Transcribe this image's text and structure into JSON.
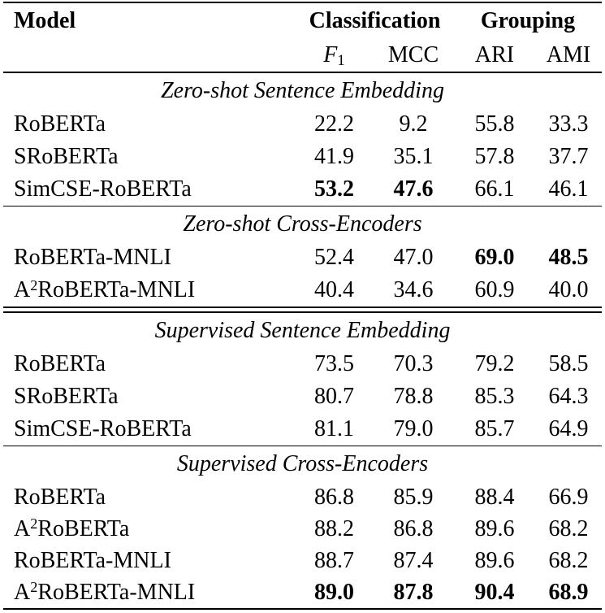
{
  "colors": {
    "background": "#ffffff",
    "text": "#000000",
    "rule": "#000000"
  },
  "table": {
    "header": {
      "model_label": "Model",
      "group_classification": "Classification",
      "group_grouping": "Grouping",
      "metric_f": "F",
      "metric_f_sub": "1",
      "metric_mcc": "MCC",
      "metric_ari": "ARI",
      "metric_ami": "AMI"
    },
    "sections": [
      {
        "title": "Zero-shot Sentence Embedding",
        "rows": [
          {
            "model_pre": "RoBERTa",
            "model_sup": "",
            "model_post": "",
            "f1": "22.2",
            "mcc": "9.2",
            "ari": "55.8",
            "ami": "33.3",
            "bold_cols": []
          },
          {
            "model_pre": "SRoBERTa",
            "model_sup": "",
            "model_post": "",
            "f1": "41.9",
            "mcc": "35.1",
            "ari": "57.8",
            "ami": "37.7",
            "bold_cols": []
          },
          {
            "model_pre": "SimCSE-RoBERTa",
            "model_sup": "",
            "model_post": "",
            "f1": "53.2",
            "mcc": "47.6",
            "ari": "66.1",
            "ami": "46.1",
            "bold_cols": [
              "f1",
              "mcc"
            ]
          }
        ]
      },
      {
        "title": "Zero-shot Cross-Encoders",
        "rows": [
          {
            "model_pre": "RoBERTa-MNLI",
            "model_sup": "",
            "model_post": "",
            "f1": "52.4",
            "mcc": "47.0",
            "ari": "69.0",
            "ami": "48.5",
            "bold_cols": [
              "ari",
              "ami"
            ]
          },
          {
            "model_pre": "A",
            "model_sup": "2",
            "model_post": "RoBERTa-MNLI",
            "f1": "40.4",
            "mcc": "34.6",
            "ari": "60.9",
            "ami": "40.0",
            "bold_cols": []
          }
        ]
      },
      {
        "title": "Supervised Sentence Embedding",
        "rows": [
          {
            "model_pre": "RoBERTa",
            "model_sup": "",
            "model_post": "",
            "f1": "73.5",
            "mcc": "70.3",
            "ari": "79.2",
            "ami": "58.5",
            "bold_cols": []
          },
          {
            "model_pre": "SRoBERTa",
            "model_sup": "",
            "model_post": "",
            "f1": "80.7",
            "mcc": "78.8",
            "ari": "85.3",
            "ami": "64.3",
            "bold_cols": []
          },
          {
            "model_pre": "SimCSE-RoBERTa",
            "model_sup": "",
            "model_post": "",
            "f1": "81.1",
            "mcc": "79.0",
            "ari": "85.7",
            "ami": "64.9",
            "bold_cols": []
          }
        ]
      },
      {
        "title": "Supervised Cross-Encoders",
        "rows": [
          {
            "model_pre": "RoBERTa",
            "model_sup": "",
            "model_post": "",
            "f1": "86.8",
            "mcc": "85.9",
            "ari": "88.4",
            "ami": "66.9",
            "bold_cols": []
          },
          {
            "model_pre": "A",
            "model_sup": "2",
            "model_post": "RoBERTa",
            "f1": "88.2",
            "mcc": "86.8",
            "ari": "89.6",
            "ami": "68.2",
            "bold_cols": []
          },
          {
            "model_pre": "RoBERTa-MNLI",
            "model_sup": "",
            "model_post": "",
            "f1": "88.7",
            "mcc": "87.4",
            "ari": "89.6",
            "ami": "68.2",
            "bold_cols": []
          },
          {
            "model_pre": "A",
            "model_sup": "2",
            "model_post": "RoBERTa-MNLI",
            "f1": "89.0",
            "mcc": "87.8",
            "ari": "90.4",
            "ami": "68.9",
            "bold_cols": [
              "f1",
              "mcc",
              "ari",
              "ami"
            ]
          }
        ]
      }
    ]
  }
}
